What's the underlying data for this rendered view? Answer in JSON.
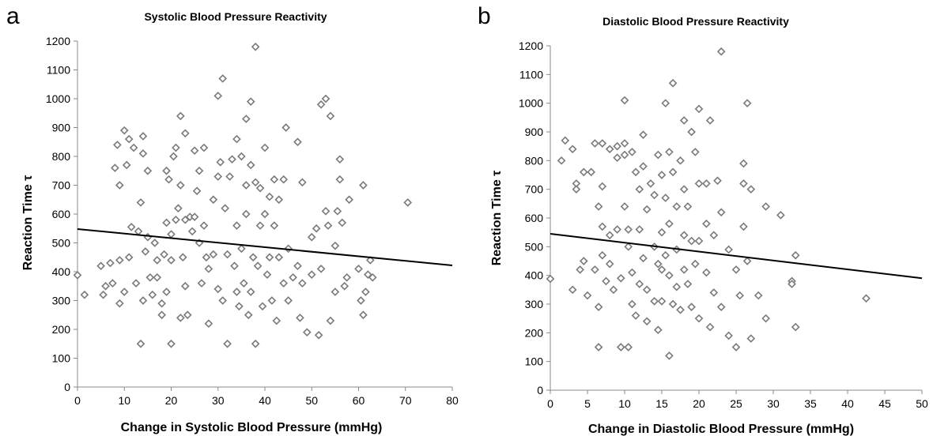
{
  "panels": [
    {
      "letter": "a"
    },
    {
      "letter": "b"
    }
  ],
  "chart_data": [
    {
      "type": "scatter",
      "title": "Systolic Blood Pressure Reactivity",
      "xlabel": "Change in Systolic Blood Pressure (mmHg)",
      "ylabel": "Reaction Time τ",
      "xlim": [
        0,
        80
      ],
      "ylim": [
        0,
        1200
      ],
      "xticks": [
        0,
        10,
        20,
        30,
        40,
        50,
        60,
        70,
        80
      ],
      "yticks": [
        0,
        100,
        200,
        300,
        400,
        500,
        600,
        700,
        800,
        900,
        1000,
        1100,
        1200
      ],
      "grid": false,
      "legend": "none",
      "marker_color": "#7a7a7a",
      "trendline": {
        "x": [
          0,
          80
        ],
        "y": [
          548,
          422
        ]
      },
      "points": [
        [
          0,
          388
        ],
        [
          1.5,
          320
        ],
        [
          5,
          420
        ],
        [
          5.5,
          320
        ],
        [
          6,
          350
        ],
        [
          7,
          430
        ],
        [
          7.5,
          360
        ],
        [
          8,
          760
        ],
        [
          8.5,
          840
        ],
        [
          9,
          700
        ],
        [
          9,
          290
        ],
        [
          9,
          440
        ],
        [
          10,
          890
        ],
        [
          10.5,
          770
        ],
        [
          10,
          330
        ],
        [
          11,
          860
        ],
        [
          11.5,
          555
        ],
        [
          11,
          450
        ],
        [
          12,
          830
        ],
        [
          12.5,
          360
        ],
        [
          13,
          540
        ],
        [
          13.5,
          640
        ],
        [
          14,
          870
        ],
        [
          14,
          810
        ],
        [
          13.5,
          150
        ],
        [
          14,
          300
        ],
        [
          14.5,
          470
        ],
        [
          15,
          750
        ],
        [
          15,
          520
        ],
        [
          15.5,
          380
        ],
        [
          16,
          320
        ],
        [
          16.5,
          500
        ],
        [
          17,
          380
        ],
        [
          17,
          440
        ],
        [
          18,
          290
        ],
        [
          18,
          250
        ],
        [
          18.5,
          460
        ],
        [
          19,
          570
        ],
        [
          19,
          750
        ],
        [
          19.5,
          720
        ],
        [
          19,
          330
        ],
        [
          20,
          150
        ],
        [
          20,
          530
        ],
        [
          20.5,
          800
        ],
        [
          20,
          440
        ],
        [
          21,
          580
        ],
        [
          21,
          830
        ],
        [
          21.5,
          620
        ],
        [
          22,
          940
        ],
        [
          22,
          700
        ],
        [
          22,
          240
        ],
        [
          22.5,
          450
        ],
        [
          23,
          580
        ],
        [
          23,
          880
        ],
        [
          23,
          350
        ],
        [
          23.5,
          250
        ],
        [
          24,
          590
        ],
        [
          24.5,
          540
        ],
        [
          25,
          820
        ],
        [
          25,
          590
        ],
        [
          25.5,
          680
        ],
        [
          26,
          750
        ],
        [
          26,
          500
        ],
        [
          26.5,
          360
        ],
        [
          27,
          830
        ],
        [
          27,
          560
        ],
        [
          27.5,
          450
        ],
        [
          28,
          220
        ],
        [
          28,
          410
        ],
        [
          29,
          650
        ],
        [
          29,
          460
        ],
        [
          30,
          1010
        ],
        [
          30,
          730
        ],
        [
          30,
          340
        ],
        [
          30.5,
          780
        ],
        [
          31,
          1070
        ],
        [
          31,
          300
        ],
        [
          31.5,
          620
        ],
        [
          32,
          460
        ],
        [
          32,
          150
        ],
        [
          32.5,
          730
        ],
        [
          33,
          790
        ],
        [
          33.5,
          420
        ],
        [
          34,
          860
        ],
        [
          34,
          560
        ],
        [
          34,
          330
        ],
        [
          34.5,
          280
        ],
        [
          35,
          800
        ],
        [
          35,
          480
        ],
        [
          35.5,
          360
        ],
        [
          36,
          930
        ],
        [
          36,
          700
        ],
        [
          36,
          600
        ],
        [
          36.5,
          250
        ],
        [
          37,
          990
        ],
        [
          37,
          770
        ],
        [
          37,
          330
        ],
        [
          37.5,
          450
        ],
        [
          38,
          710
        ],
        [
          38,
          1180
        ],
        [
          38,
          150
        ],
        [
          38.5,
          420
        ],
        [
          39,
          690
        ],
        [
          39,
          560
        ],
        [
          39.5,
          280
        ],
        [
          40,
          830
        ],
        [
          40,
          600
        ],
        [
          40.5,
          390
        ],
        [
          41,
          660
        ],
        [
          41,
          450
        ],
        [
          41.5,
          300
        ],
        [
          42,
          720
        ],
        [
          42,
          560
        ],
        [
          42.5,
          230
        ],
        [
          43,
          650
        ],
        [
          43,
          450
        ],
        [
          44,
          720
        ],
        [
          44,
          360
        ],
        [
          44.5,
          900
        ],
        [
          45,
          480
        ],
        [
          45,
          300
        ],
        [
          46,
          380
        ],
        [
          47,
          850
        ],
        [
          47,
          420
        ],
        [
          47.5,
          240
        ],
        [
          48,
          710
        ],
        [
          48,
          360
        ],
        [
          49,
          190
        ],
        [
          50,
          520
        ],
        [
          50,
          390
        ],
        [
          51,
          550
        ],
        [
          51.5,
          180
        ],
        [
          52,
          410
        ],
        [
          52,
          980
        ],
        [
          53,
          1000
        ],
        [
          53,
          610
        ],
        [
          53.5,
          560
        ],
        [
          54,
          940
        ],
        [
          54,
          230
        ],
        [
          55,
          490
        ],
        [
          55,
          330
        ],
        [
          55.5,
          610
        ],
        [
          56,
          790
        ],
        [
          56,
          720
        ],
        [
          56.5,
          570
        ],
        [
          57,
          350
        ],
        [
          57.5,
          380
        ],
        [
          58,
          650
        ],
        [
          60,
          410
        ],
        [
          60.5,
          300
        ],
        [
          61,
          700
        ],
        [
          61,
          250
        ],
        [
          61.5,
          330
        ],
        [
          62,
          390
        ],
        [
          62.5,
          440
        ],
        [
          63,
          380
        ],
        [
          70.5,
          640
        ]
      ]
    },
    {
      "type": "scatter",
      "title": "Diastolic Blood Pressure Reactivity",
      "xlabel": "Change in Diastolic Blood Pressure (mmHg)",
      "ylabel": "Reaction Time τ",
      "xlim": [
        0,
        50
      ],
      "ylim": [
        0,
        1200
      ],
      "xticks": [
        0,
        5,
        10,
        15,
        20,
        25,
        30,
        35,
        40,
        45,
        50
      ],
      "yticks": [
        0,
        100,
        200,
        300,
        400,
        500,
        600,
        700,
        800,
        900,
        1000,
        1100,
        1200
      ],
      "grid": false,
      "legend": "none",
      "marker_color": "#7a7a7a",
      "trendline": {
        "x": [
          0,
          50
        ],
        "y": [
          545,
          390
        ]
      },
      "points": [
        [
          0,
          388
        ],
        [
          1.5,
          800
        ],
        [
          2,
          870
        ],
        [
          3,
          350
        ],
        [
          3,
          840
        ],
        [
          3.5,
          720
        ],
        [
          3.5,
          700
        ],
        [
          4,
          420
        ],
        [
          4.5,
          450
        ],
        [
          4.5,
          760
        ],
        [
          5,
          330
        ],
        [
          5.5,
          760
        ],
        [
          6,
          860
        ],
        [
          6,
          420
        ],
        [
          6.5,
          640
        ],
        [
          6.5,
          290
        ],
        [
          6.5,
          150
        ],
        [
          7,
          710
        ],
        [
          7,
          860
        ],
        [
          7,
          570
        ],
        [
          7,
          470
        ],
        [
          7.5,
          380
        ],
        [
          8,
          840
        ],
        [
          8,
          540
        ],
        [
          8,
          440
        ],
        [
          8.5,
          350
        ],
        [
          9,
          850
        ],
        [
          9,
          810
        ],
        [
          9,
          560
        ],
        [
          9.5,
          390
        ],
        [
          9.5,
          150
        ],
        [
          10,
          860
        ],
        [
          10,
          820
        ],
        [
          10,
          1010
        ],
        [
          10,
          640
        ],
        [
          10.5,
          560
        ],
        [
          10.5,
          150
        ],
        [
          10.5,
          500
        ],
        [
          11,
          830
        ],
        [
          11,
          410
        ],
        [
          11,
          300
        ],
        [
          11.5,
          760
        ],
        [
          11.5,
          260
        ],
        [
          12,
          700
        ],
        [
          12,
          560
        ],
        [
          12,
          370
        ],
        [
          12.5,
          890
        ],
        [
          12.5,
          780
        ],
        [
          12.5,
          460
        ],
        [
          13,
          630
        ],
        [
          13,
          350
        ],
        [
          13,
          240
        ],
        [
          13.5,
          720
        ],
        [
          14,
          680
        ],
        [
          14,
          500
        ],
        [
          14,
          310
        ],
        [
          14.5,
          820
        ],
        [
          14.5,
          440
        ],
        [
          14.5,
          210
        ],
        [
          15,
          750
        ],
        [
          15,
          550
        ],
        [
          15,
          420
        ],
        [
          15,
          310
        ],
        [
          15.5,
          1000
        ],
        [
          15.5,
          670
        ],
        [
          15.5,
          470
        ],
        [
          16,
          120
        ],
        [
          16,
          830
        ],
        [
          16,
          580
        ],
        [
          16,
          400
        ],
        [
          16.5,
          1070
        ],
        [
          16.5,
          760
        ],
        [
          16.5,
          300
        ],
        [
          17,
          640
        ],
        [
          17,
          490
        ],
        [
          17,
          360
        ],
        [
          17.5,
          800
        ],
        [
          17.5,
          280
        ],
        [
          18,
          940
        ],
        [
          18,
          700
        ],
        [
          18,
          540
        ],
        [
          18,
          420
        ],
        [
          18.5,
          640
        ],
        [
          18.5,
          370
        ],
        [
          19,
          900
        ],
        [
          19,
          520
        ],
        [
          19,
          290
        ],
        [
          19.5,
          830
        ],
        [
          19.5,
          440
        ],
        [
          20,
          980
        ],
        [
          20,
          720
        ],
        [
          20,
          520
        ],
        [
          20,
          250
        ],
        [
          21,
          720
        ],
        [
          21,
          580
        ],
        [
          21,
          410
        ],
        [
          21.5,
          940
        ],
        [
          21.5,
          220
        ],
        [
          22,
          540
        ],
        [
          22,
          340
        ],
        [
          22.5,
          730
        ],
        [
          23,
          1180
        ],
        [
          23,
          620
        ],
        [
          23,
          290
        ],
        [
          24,
          490
        ],
        [
          24,
          190
        ],
        [
          25,
          420
        ],
        [
          25,
          150
        ],
        [
          25.5,
          330
        ],
        [
          26,
          720
        ],
        [
          26,
          790
        ],
        [
          26,
          570
        ],
        [
          26.5,
          1000
        ],
        [
          26.5,
          450
        ],
        [
          27,
          700
        ],
        [
          27,
          180
        ],
        [
          28,
          330
        ],
        [
          29,
          640
        ],
        [
          29,
          250
        ],
        [
          31,
          610
        ],
        [
          32.5,
          380
        ],
        [
          32.5,
          370
        ],
        [
          33,
          470
        ],
        [
          33,
          220
        ],
        [
          42.5,
          320
        ]
      ]
    }
  ]
}
